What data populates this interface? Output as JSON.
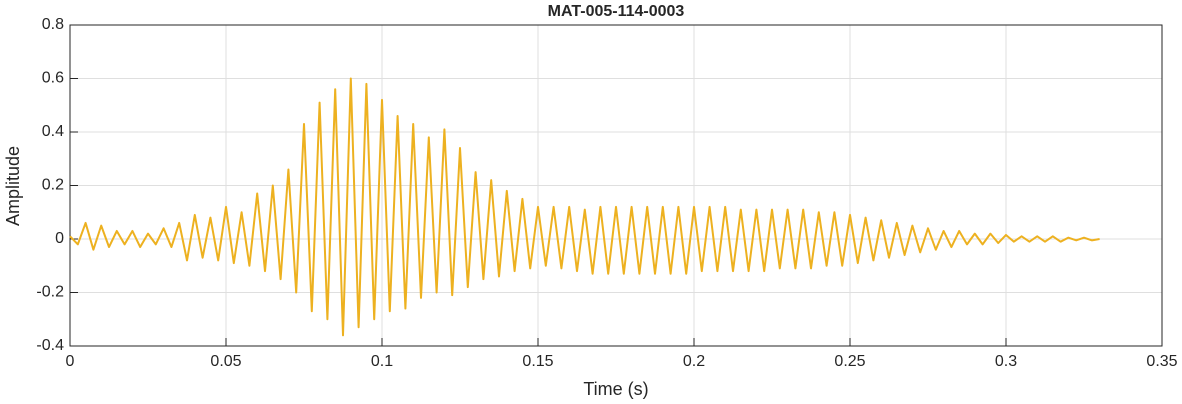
{
  "chart_data": {
    "type": "line",
    "title": "MAT-005-114-0003",
    "x_label": "Time (s)",
    "y_label": "Amplitude",
    "x": [
      0,
      0.0025,
      0.005,
      0.0075,
      0.01,
      0.0125,
      0.015,
      0.0175,
      0.02,
      0.0225,
      0.025,
      0.0275,
      0.03,
      0.0325,
      0.035,
      0.0375,
      0.04,
      0.0425,
      0.045,
      0.0475,
      0.05,
      0.0525,
      0.055,
      0.0575,
      0.06,
      0.0625,
      0.065,
      0.0675,
      0.07,
      0.0725,
      0.075,
      0.0775,
      0.08,
      0.0825,
      0.085,
      0.0875,
      0.09,
      0.0925,
      0.095,
      0.0975,
      0.1,
      0.1025,
      0.105,
      0.1075,
      0.11,
      0.1125,
      0.115,
      0.1175,
      0.12,
      0.1225,
      0.125,
      0.1275,
      0.13,
      0.1325,
      0.135,
      0.1375,
      0.14,
      0.1425,
      0.145,
      0.1475,
      0.15,
      0.1525,
      0.155,
      0.1575,
      0.16,
      0.1625,
      0.165,
      0.1675,
      0.17,
      0.1725,
      0.175,
      0.1775,
      0.18,
      0.1825,
      0.185,
      0.1875,
      0.19,
      0.1925,
      0.195,
      0.1975,
      0.2,
      0.2025,
      0.205,
      0.2075,
      0.21,
      0.2125,
      0.215,
      0.2175,
      0.22,
      0.2225,
      0.225,
      0.2275,
      0.23,
      0.2325,
      0.235,
      0.2375,
      0.24,
      0.2425,
      0.245,
      0.2475,
      0.25,
      0.2525,
      0.255,
      0.2575,
      0.26,
      0.2625,
      0.265,
      0.2675,
      0.27,
      0.2725,
      0.275,
      0.2775,
      0.28,
      0.2825,
      0.285,
      0.2875,
      0.29,
      0.2925,
      0.295,
      0.2975,
      0.3,
      0.3025,
      0.305,
      0.3075,
      0.31,
      0.3125,
      0.315,
      0.3175,
      0.32,
      0.3225,
      0.325,
      0.3275,
      0.33
    ],
    "series": [
      {
        "name": "Amplitude",
        "color": "#EDB120",
        "values": [
          0.01,
          -0.02,
          0.06,
          -0.04,
          0.05,
          -0.03,
          0.03,
          -0.02,
          0.03,
          -0.03,
          0.02,
          -0.02,
          0.04,
          -0.03,
          0.06,
          -0.08,
          0.09,
          -0.07,
          0.08,
          -0.08,
          0.12,
          -0.09,
          0.1,
          -0.1,
          0.17,
          -0.12,
          0.2,
          -0.15,
          0.26,
          -0.2,
          0.43,
          -0.27,
          0.51,
          -0.3,
          0.56,
          -0.36,
          0.6,
          -0.33,
          0.58,
          -0.3,
          0.52,
          -0.27,
          0.46,
          -0.26,
          0.43,
          -0.22,
          0.38,
          -0.2,
          0.41,
          -0.21,
          0.34,
          -0.18,
          0.25,
          -0.15,
          0.22,
          -0.14,
          0.18,
          -0.12,
          0.15,
          -0.11,
          0.12,
          -0.1,
          0.12,
          -0.11,
          0.12,
          -0.12,
          0.11,
          -0.13,
          0.12,
          -0.13,
          0.12,
          -0.13,
          0.12,
          -0.13,
          0.12,
          -0.13,
          0.12,
          -0.13,
          0.12,
          -0.13,
          0.12,
          -0.12,
          0.12,
          -0.12,
          0.12,
          -0.12,
          0.11,
          -0.12,
          0.11,
          -0.12,
          0.11,
          -0.11,
          0.11,
          -0.11,
          0.11,
          -0.11,
          0.1,
          -0.1,
          0.1,
          -0.1,
          0.09,
          -0.09,
          0.08,
          -0.08,
          0.07,
          -0.07,
          0.06,
          -0.06,
          0.05,
          -0.05,
          0.04,
          -0.04,
          0.03,
          -0.03,
          0.03,
          -0.02,
          0.02,
          -0.02,
          0.02,
          -0.015,
          0.015,
          -0.01,
          0.01,
          -0.01,
          0.01,
          -0.01,
          0.01,
          -0.01,
          0.005,
          -0.005,
          0.005,
          -0.005,
          0
        ]
      }
    ],
    "xlim": [
      0,
      0.35
    ],
    "xticks": [
      0,
      0.05,
      0.1,
      0.15,
      0.2,
      0.25,
      0.3,
      0.35
    ],
    "ylim": [
      -0.4,
      0.8
    ],
    "yticks": [
      -0.4,
      -0.2,
      0,
      0.2,
      0.4,
      0.6,
      0.8
    ],
    "grid": true
  }
}
